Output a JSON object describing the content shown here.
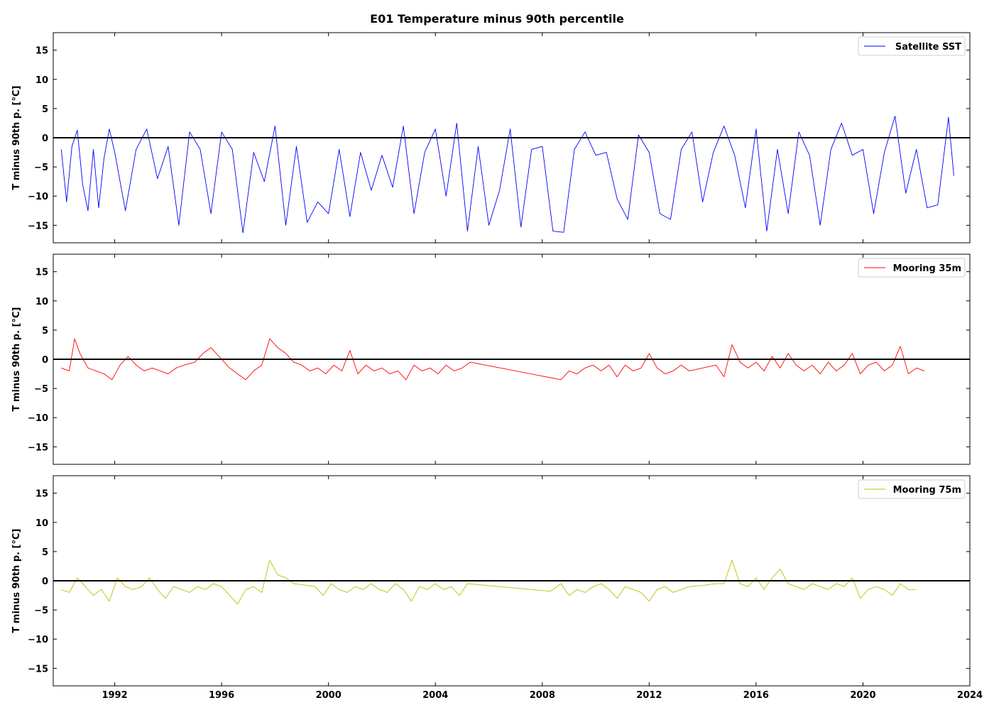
{
  "chart_data": {
    "type": "line",
    "title": "E01 Temperature minus 90th percentile",
    "ylabel": "T minus 90th p. [$^\\circ$C]",
    "ylabel_display": "T minus 90th p. [°C]",
    "xlim": [
      1989.7,
      2024.0
    ],
    "ylim": [
      -18,
      18
    ],
    "xticks": [
      1992,
      1996,
      2000,
      2004,
      2008,
      2012,
      2016,
      2020,
      2024
    ],
    "yticks": [
      15,
      10,
      5,
      0,
      -5,
      -10,
      -15
    ],
    "reference_line": 0,
    "panels": [
      {
        "legend": "Satellite SST",
        "color": "#0000ff",
        "legend_position": "upper right",
        "series": {
          "name": "Satellite SST",
          "x": [
            1990.0,
            1990.2,
            1990.4,
            1990.6,
            1990.8,
            1991.0,
            1991.2,
            1991.4,
            1991.6,
            1991.8,
            1992.0,
            1992.4,
            1992.8,
            1993.2,
            1993.6,
            1994.0,
            1994.4,
            1994.8,
            1995.2,
            1995.6,
            1996.0,
            1996.4,
            1996.8,
            1997.2,
            1997.6,
            1998.0,
            1998.4,
            1998.8,
            1999.2,
            1999.6,
            2000.0,
            2000.4,
            2000.8,
            2001.2,
            2001.6,
            2002.0,
            2002.4,
            2002.8,
            2003.2,
            2003.6,
            2004.0,
            2004.4,
            2004.8,
            2005.2,
            2005.6,
            2006.0,
            2006.4,
            2006.8,
            2007.2,
            2007.6,
            2008.0,
            2008.4,
            2008.8,
            2009.2,
            2009.6,
            2010.0,
            2010.4,
            2010.8,
            2011.2,
            2011.6,
            2012.0,
            2012.4,
            2012.8,
            2013.2,
            2013.6,
            2014.0,
            2014.4,
            2014.8,
            2015.2,
            2015.6,
            2016.0,
            2016.4,
            2016.8,
            2017.2,
            2017.6,
            2018.0,
            2018.4,
            2018.8,
            2019.2,
            2019.6,
            2020.0,
            2020.4,
            2020.8,
            2021.2,
            2021.6,
            2022.0,
            2022.4,
            2022.8,
            2023.2,
            2023.4
          ],
          "y": [
            -2.0,
            -11.0,
            -1.5,
            1.3,
            -8.0,
            -12.5,
            -2.0,
            -12.0,
            -3.5,
            1.5,
            -2.5,
            -12.5,
            -2.0,
            1.5,
            -7.0,
            -1.5,
            -15.0,
            1.0,
            -2.0,
            -13.0,
            1.0,
            -2.0,
            -16.3,
            -2.5,
            -7.5,
            2.0,
            -15.0,
            -1.5,
            -14.5,
            -11.0,
            -13.0,
            -2.0,
            -13.5,
            -2.5,
            -9.0,
            -3.0,
            -8.5,
            2.0,
            -13.0,
            -2.5,
            1.5,
            -10.0,
            2.5,
            -16.0,
            -1.5,
            -15.0,
            -9.0,
            1.5,
            -15.3,
            -2.0,
            -1.5,
            -16.0,
            -16.2,
            -2.0,
            1.0,
            -3.0,
            -2.5,
            -10.5,
            -14.0,
            0.5,
            -2.5,
            -13.0,
            -14.0,
            -2.0,
            1.0,
            -11.0,
            -2.5,
            2.0,
            -3.0,
            -12.0,
            1.5,
            -16.0,
            -2.0,
            -13.0,
            1.0,
            -3.0,
            -15.0,
            -2.0,
            2.5,
            -3.0,
            -2.0,
            -13.0,
            -2.5,
            3.7,
            -9.5,
            -2.0,
            -12.0,
            -11.5,
            3.5,
            -6.5
          ]
        }
      },
      {
        "legend": "Mooring 35m",
        "color": "#ff0000",
        "legend_position": "upper right",
        "series": {
          "name": "Mooring 35m",
          "x": [
            1990.0,
            1990.3,
            1990.5,
            1990.7,
            1991.0,
            1991.3,
            1991.6,
            1991.9,
            1992.2,
            1992.5,
            1992.8,
            1993.1,
            1993.4,
            1993.7,
            1994.0,
            1994.3,
            1994.6,
            1995.0,
            1995.3,
            1995.6,
            1996.3,
            1996.6,
            1996.9,
            1997.2,
            1997.5,
            1997.8,
            1998.1,
            1998.4,
            1998.7,
            1999.0,
            1999.3,
            1999.6,
            1999.9,
            2000.2,
            2000.5,
            2000.8,
            2001.1,
            2001.4,
            2001.7,
            2002.0,
            2002.3,
            2002.6,
            2002.9,
            2003.2,
            2003.5,
            2003.8,
            2004.1,
            2004.4,
            2004.7,
            2005.0,
            2005.3,
            2008.7,
            2009.0,
            2009.3,
            2009.6,
            2009.9,
            2010.2,
            2010.5,
            2010.8,
            2011.1,
            2011.4,
            2011.7,
            2012.0,
            2012.3,
            2012.6,
            2012.9,
            2013.2,
            2013.5,
            2014.0,
            2014.5,
            2014.8,
            2015.1,
            2015.4,
            2015.7,
            2016.0,
            2016.3,
            2016.6,
            2016.9,
            2017.2,
            2017.5,
            2017.8,
            2018.1,
            2018.4,
            2018.7,
            2019.0,
            2019.3,
            2019.6,
            2019.9,
            2020.2,
            2020.5,
            2020.8,
            2021.1,
            2021.4,
            2021.7,
            2022.0,
            2022.3
          ],
          "y": [
            -1.5,
            -2.0,
            3.5,
            1.0,
            -1.5,
            -2.0,
            -2.5,
            -3.5,
            -1.0,
            0.5,
            -1.0,
            -2.0,
            -1.5,
            -2.0,
            -2.5,
            -1.5,
            -1.0,
            -0.5,
            1.0,
            2.0,
            -1.5,
            -2.5,
            -3.5,
            -2.0,
            -1.0,
            3.5,
            2.0,
            1.0,
            -0.5,
            -1.0,
            -2.0,
            -1.5,
            -2.5,
            -1.0,
            -2.0,
            1.5,
            -2.5,
            -1.0,
            -2.0,
            -1.5,
            -2.5,
            -2.0,
            -3.5,
            -1.0,
            -2.0,
            -1.5,
            -2.5,
            -1.0,
            -2.0,
            -1.5,
            -0.5,
            -3.5,
            -2.0,
            -2.5,
            -1.5,
            -1.0,
            -2.0,
            -1.0,
            -3.0,
            -1.0,
            -2.0,
            -1.5,
            1.0,
            -1.5,
            -2.5,
            -2.0,
            -1.0,
            -2.0,
            -1.5,
            -1.0,
            -3.0,
            2.5,
            -0.5,
            -1.5,
            -0.5,
            -2.0,
            0.5,
            -1.5,
            1.0,
            -1.0,
            -2.0,
            -1.0,
            -2.5,
            -0.5,
            -2.0,
            -1.0,
            1.0,
            -2.5,
            -1.0,
            -0.5,
            -2.0,
            -1.0,
            2.2,
            -2.5,
            -1.5,
            -2.0
          ]
        }
      },
      {
        "legend": "Mooring 75m",
        "color": "#bfbf00",
        "legend_position": "upper right",
        "series": {
          "name": "Mooring 75m",
          "x": [
            1990.0,
            1990.3,
            1990.6,
            1990.9,
            1991.2,
            1991.5,
            1991.8,
            1992.1,
            1992.4,
            1992.7,
            1993.0,
            1993.3,
            1993.6,
            1993.9,
            1994.2,
            1994.5,
            1994.8,
            1995.1,
            1995.4,
            1995.7,
            1996.0,
            1996.3,
            1996.6,
            1996.9,
            1997.2,
            1997.5,
            1997.8,
            1998.1,
            1998.4,
            1998.7,
            1999.5,
            1999.8,
            2000.1,
            2000.4,
            2000.7,
            2001.0,
            2001.3,
            2001.6,
            2001.9,
            2002.2,
            2002.5,
            2002.8,
            2003.1,
            2003.4,
            2003.7,
            2004.0,
            2004.3,
            2004.6,
            2004.9,
            2005.2,
            2008.3,
            2008.7,
            2009.0,
            2009.3,
            2009.6,
            2009.9,
            2010.2,
            2010.5,
            2010.8,
            2011.1,
            2011.4,
            2011.7,
            2012.0,
            2012.3,
            2012.6,
            2012.9,
            2013.2,
            2013.5,
            2014.0,
            2014.5,
            2014.8,
            2015.1,
            2015.4,
            2015.7,
            2016.0,
            2016.3,
            2016.6,
            2016.9,
            2017.2,
            2017.5,
            2017.8,
            2018.1,
            2018.4,
            2018.7,
            2019.0,
            2019.3,
            2019.6,
            2019.9,
            2020.2,
            2020.5,
            2020.8,
            2021.1,
            2021.4,
            2021.7,
            2022.0
          ],
          "y": [
            -1.5,
            -2.0,
            0.5,
            -1.0,
            -2.5,
            -1.5,
            -3.5,
            0.5,
            -1.0,
            -1.5,
            -1.0,
            0.5,
            -1.5,
            -3.0,
            -1.0,
            -1.5,
            -2.0,
            -1.0,
            -1.5,
            -0.5,
            -1.0,
            -2.5,
            -4.0,
            -1.5,
            -1.0,
            -2.0,
            3.5,
            1.0,
            0.5,
            -0.5,
            -1.0,
            -2.5,
            -0.5,
            -1.5,
            -2.0,
            -1.0,
            -1.5,
            -0.5,
            -1.5,
            -2.0,
            -0.5,
            -1.5,
            -3.5,
            -1.0,
            -1.5,
            -0.5,
            -1.5,
            -1.0,
            -2.5,
            -0.5,
            -1.8,
            -0.5,
            -2.5,
            -1.5,
            -2.0,
            -1.0,
            -0.5,
            -1.5,
            -3.0,
            -1.0,
            -1.5,
            -2.0,
            -3.5,
            -1.5,
            -1.0,
            -2.0,
            -1.5,
            -1.0,
            -0.8,
            -0.5,
            -0.5,
            3.5,
            -0.5,
            -1.0,
            0.5,
            -1.5,
            0.5,
            2.0,
            -0.5,
            -1.0,
            -1.5,
            -0.5,
            -1.0,
            -1.5,
            -0.5,
            -1.0,
            0.5,
            -3.0,
            -1.5,
            -1.0,
            -1.5,
            -2.5,
            -0.5,
            -1.5,
            -1.5
          ]
        }
      }
    ]
  }
}
